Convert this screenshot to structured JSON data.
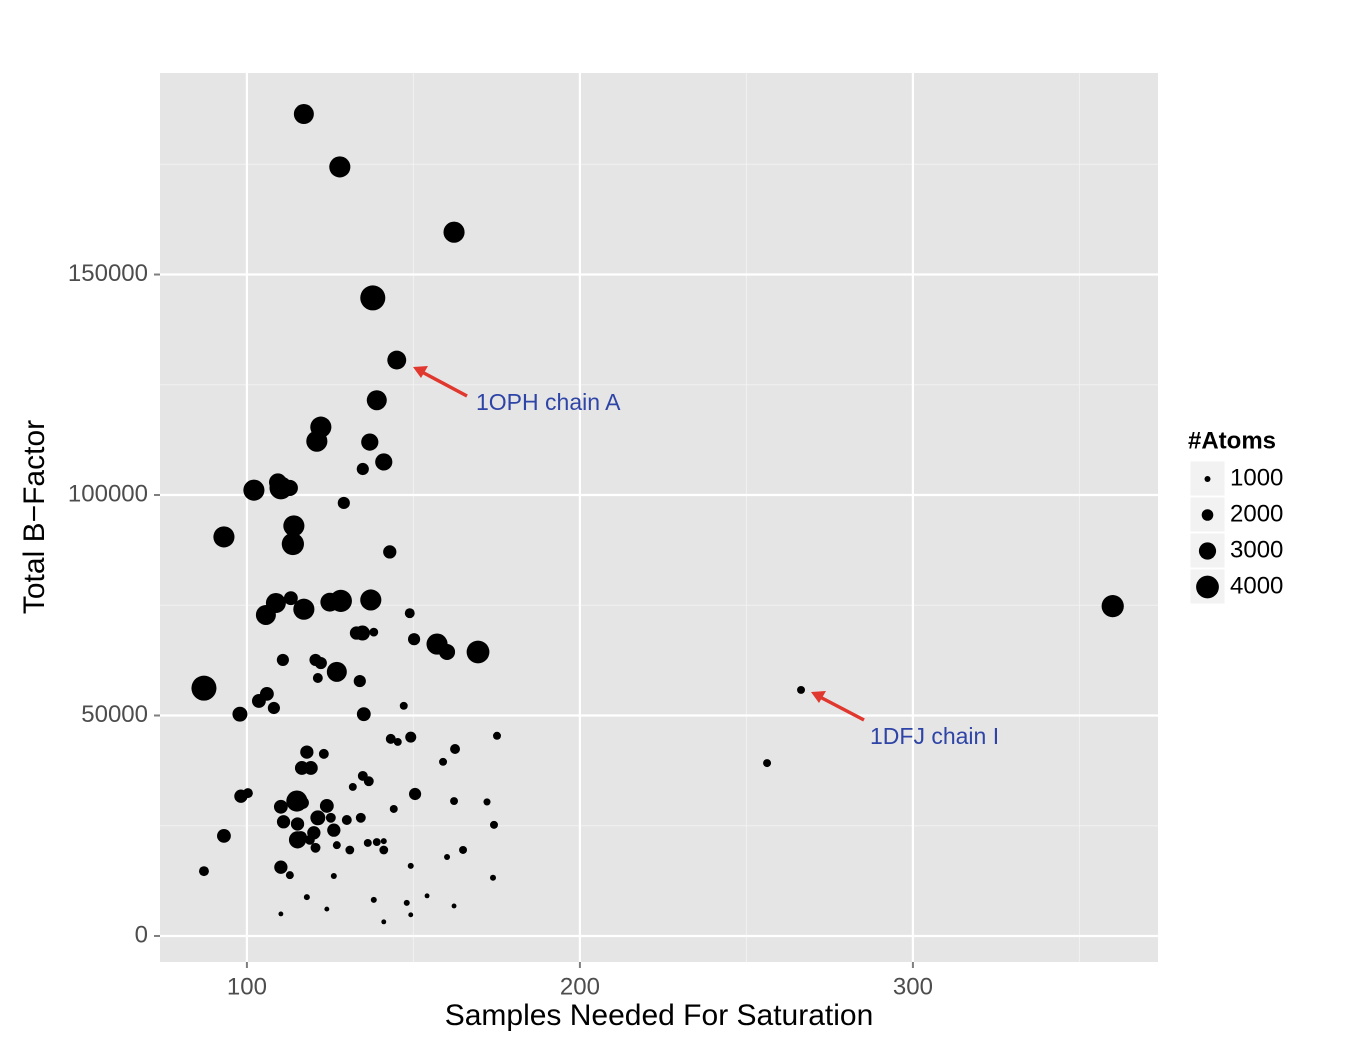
{
  "chart_data": {
    "type": "scatter",
    "x_label": "Samples Needed For Saturation",
    "y_label": "Total B−Factor",
    "size_legend_title": "#Atoms",
    "size_legend": [
      1000,
      2000,
      3000,
      4000
    ],
    "color": "#000000",
    "xlim": [
      73.9,
      373.6
    ],
    "xticks": [
      100,
      200,
      300
    ],
    "ylim": [
      -5900,
      195700
    ],
    "yticks": [
      0,
      50000,
      100000,
      150000
    ],
    "grid": true,
    "annotations": [
      "1OPH chain A",
      "1DFJ chain I"
    ],
    "x": [
      117.1,
      127.9,
      162.2,
      137.8,
      145.0,
      139.0,
      122.2,
      121.0,
      136.9,
      141.1,
      134.8,
      102.1,
      109.3,
      110.2,
      112.9,
      129.1,
      114.1,
      93.1,
      113.8,
      142.9,
      360.0,
      108.7,
      113.2,
      117.1,
      124.9,
      128.2,
      137.2,
      105.7,
      148.9,
      132.9,
      134.7,
      138.1,
      150.2,
      157.1,
      160.1,
      169.4,
      110.8,
      120.6,
      122.2,
      127.0,
      121.3,
      133.9,
      87.1,
      106.0,
      103.6,
      108.1,
      147.1,
      266.4,
      97.9,
      135.1,
      175.1,
      143.2,
      145.3,
      149.2,
      162.5,
      158.9,
      118.0,
      123.1,
      116.5,
      119.2,
      256.2,
      134.8,
      136.6,
      131.8,
      150.5,
      98.2,
      100.3,
      115.0,
      116.8,
      110.2,
      124.0,
      144.1,
      162.2,
      172.1,
      121.3,
      125.2,
      130.0,
      134.2,
      111.0,
      115.2,
      174.2,
      126.1,
      120.1,
      116.2,
      93.1,
      115.2,
      118.9,
      136.3,
      139.0,
      141.1,
      127.0,
      120.6,
      130.9,
      141.1,
      164.9,
      160.1,
      110.2,
      149.2,
      87.1,
      112.9,
      126.1,
      173.9,
      118.0,
      138.1,
      154.1,
      148.0,
      162.2,
      124.0,
      110.2,
      149.2,
      141.1
    ],
    "y": [
      186400,
      174400,
      159600,
      144700,
      130600,
      121500,
      115400,
      112200,
      112000,
      107500,
      105900,
      101100,
      102900,
      101600,
      101600,
      98200,
      93000,
      90500,
      88900,
      87100,
      74800,
      75500,
      76600,
      74100,
      75700,
      76000,
      76200,
      72800,
      73200,
      68700,
      68700,
      68900,
      67300,
      66200,
      64400,
      64400,
      62600,
      62600,
      61900,
      59900,
      58500,
      57800,
      56200,
      54900,
      53300,
      51700,
      52200,
      55800,
      50300,
      50300,
      45400,
      44700,
      44000,
      45100,
      42400,
      39500,
      41700,
      41300,
      38100,
      38100,
      39200,
      36300,
      35100,
      33800,
      32200,
      31700,
      32400,
      30600,
      30200,
      29300,
      29500,
      28800,
      30600,
      30400,
      26800,
      26800,
      26300,
      26800,
      25900,
      25400,
      25200,
      24000,
      23400,
      22400,
      22700,
      21800,
      21800,
      21100,
      21300,
      21500,
      20600,
      20000,
      19500,
      19500,
      19500,
      17900,
      15600,
      15900,
      14700,
      13800,
      13600,
      13200,
      8800,
      8200,
      9100,
      7500,
      6800,
      6100,
      5000,
      4800,
      3200
    ],
    "size": [
      3500,
      3700,
      3700,
      4400,
      3300,
      3500,
      3700,
      3700,
      3000,
      3000,
      2100,
      3700,
      3100,
      4000,
      2800,
      2100,
      3700,
      3700,
      3900,
      2300,
      3900,
      3500,
      2400,
      3700,
      3300,
      3900,
      3700,
      3500,
      1700,
      2300,
      2600,
      1500,
      2100,
      3700,
      2800,
      4000,
      2100,
      2100,
      2100,
      3500,
      1700,
      2100,
      4400,
      2400,
      2400,
      2100,
      1350,
      1350,
      2600,
      2400,
      1350,
      1700,
      1350,
      1900,
      1700,
      1350,
      2300,
      1700,
      2400,
      2400,
      1350,
      1700,
      1700,
      1350,
      2100,
      2300,
      1700,
      3700,
      2100,
      2400,
      2400,
      1350,
      1350,
      1200,
      2600,
      1700,
      1700,
      1700,
      2300,
      2300,
      1350,
      2300,
      2300,
      2100,
      2400,
      3000,
      1700,
      1350,
      1350,
      1000,
      1350,
      1700,
      1500,
      1500,
      1350,
      1000,
      2300,
      1000,
      1700,
      1350,
      1000,
      1000,
      1000,
      1000,
      800,
      1000,
      800,
      800,
      800,
      800,
      800
    ]
  }
}
